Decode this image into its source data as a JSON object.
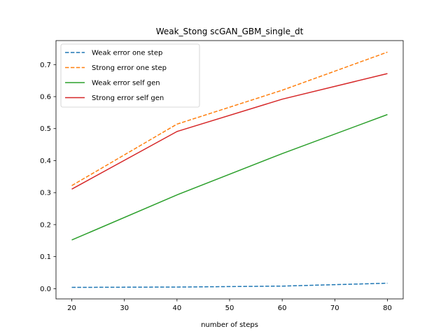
{
  "chart_data": {
    "type": "line",
    "title": "Weak_Stong scGAN_GBM_single_dt",
    "xlabel": "number of steps",
    "ylabel": "",
    "x": [
      20,
      40,
      60,
      80
    ],
    "xlim": [
      17,
      83
    ],
    "ylim": [
      -0.032,
      0.775
    ],
    "xticks": [
      20,
      30,
      40,
      50,
      60,
      70,
      80
    ],
    "yticks": [
      0.0,
      0.1,
      0.2,
      0.3,
      0.4,
      0.5,
      0.6,
      0.7
    ],
    "grid": false,
    "legend_position": "upper-left",
    "series": [
      {
        "name": "Weak error one step",
        "values": [
          0.004,
          0.005,
          0.008,
          0.017
        ],
        "color": "#1f77b4",
        "dashed": true
      },
      {
        "name": "Strong error one step",
        "values": [
          0.322,
          0.514,
          0.62,
          0.739
        ],
        "color": "#ff7f0e",
        "dashed": true
      },
      {
        "name": "Weak error self gen",
        "values": [
          0.152,
          0.293,
          0.422,
          0.544
        ],
        "color": "#2ca02c",
        "dashed": false
      },
      {
        "name": "Strong error self gen",
        "values": [
          0.311,
          0.491,
          0.592,
          0.672
        ],
        "color": "#d62728",
        "dashed": false
      }
    ]
  }
}
